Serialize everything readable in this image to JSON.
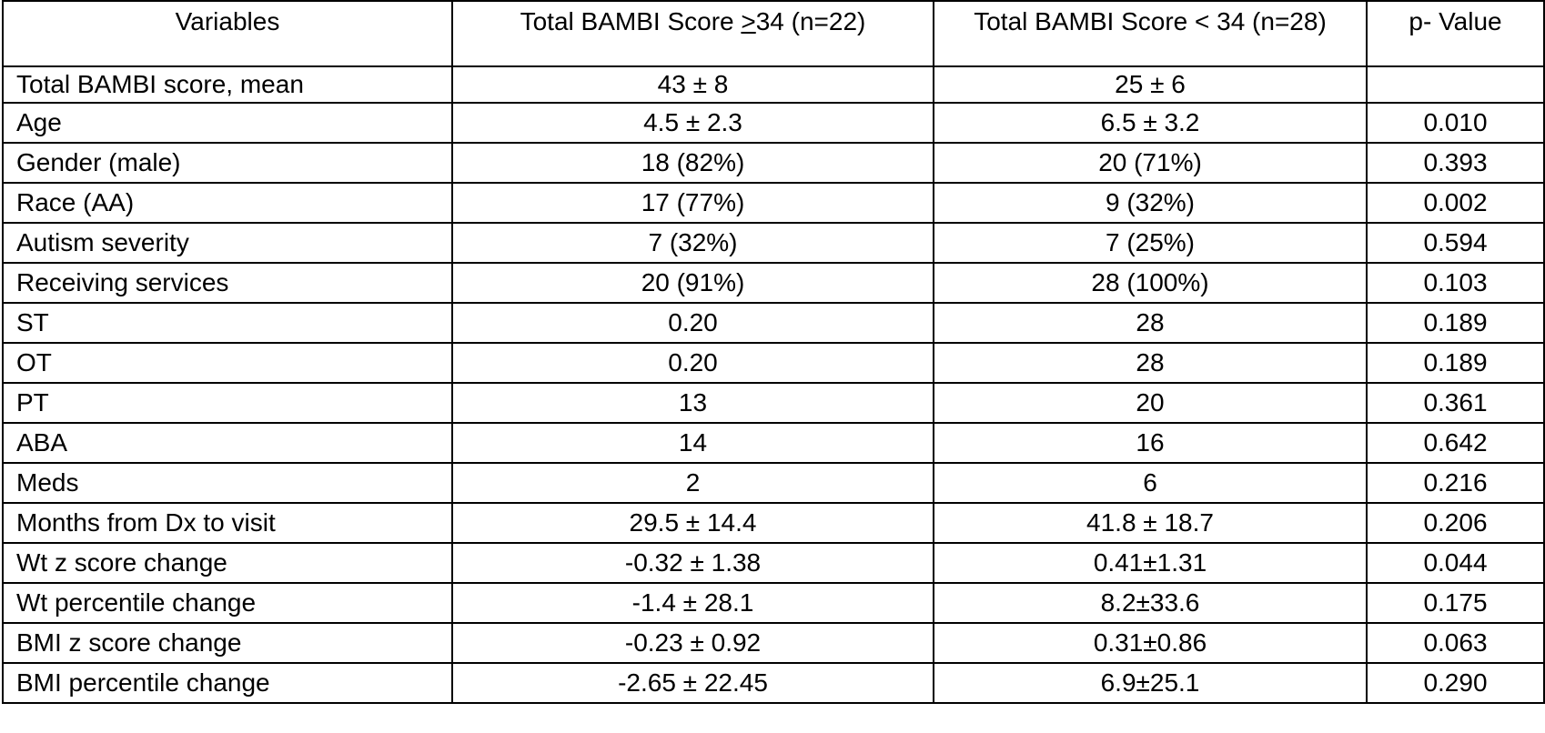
{
  "table": {
    "headers": {
      "variables": "Variables",
      "group1_prefix": "Total BAMBI Score ",
      "group1_symbol": ">",
      "group1_suffix": "34 (n=22)",
      "group2": "Total BAMBI Score < 34 (n=28)",
      "p_value": "p- Value"
    },
    "rows": [
      {
        "variable": "Total BAMBI score, mean",
        "group1": "43 ± 8",
        "group2": "25 ± 6",
        "p_value": ""
      },
      {
        "variable": "Age",
        "group1": "4.5 ± 2.3",
        "group2": "6.5 ± 3.2",
        "p_value": "0.010"
      },
      {
        "variable": "Gender (male)",
        "group1": "18 (82%)",
        "group2": "20 (71%)",
        "p_value": "0.393"
      },
      {
        "variable": "Race (AA)",
        "group1": "17 (77%)",
        "group2": "9 (32%)",
        "p_value": "0.002"
      },
      {
        "variable": "Autism severity",
        "group1": "7 (32%)",
        "group2": "7 (25%)",
        "p_value": "0.594"
      },
      {
        "variable": "Receiving services",
        "group1": "20 (91%)",
        "group2": "28 (100%)",
        "p_value": "0.103"
      },
      {
        "variable": "ST",
        "group1": "0.20",
        "group2": "28",
        "p_value": "0.189"
      },
      {
        "variable": "OT",
        "group1": "0.20",
        "group2": "28",
        "p_value": "0.189"
      },
      {
        "variable": "PT",
        "group1": "13",
        "group2": "20",
        "p_value": "0.361"
      },
      {
        "variable": "ABA",
        "group1": "14",
        "group2": "16",
        "p_value": "0.642"
      },
      {
        "variable": "Meds",
        "group1": "2",
        "group2": "6",
        "p_value": "0.216"
      },
      {
        "variable": "Months from Dx to visit",
        "group1": "29.5 ± 14.4",
        "group2": "41.8 ± 18.7",
        "p_value": "0.206"
      },
      {
        "variable": "Wt z score change",
        "group1": "-0.32 ± 1.38",
        "group2": "0.41±1.31",
        "p_value": "0.044"
      },
      {
        "variable": "Wt percentile change",
        "group1": "-1.4 ± 28.1",
        "group2": "8.2±33.6",
        "p_value": "0.175"
      },
      {
        "variable": "BMI z score change",
        "group1": "-0.23 ± 0.92",
        "group2": "0.31±0.86",
        "p_value": "0.063"
      },
      {
        "variable": "BMI percentile change",
        "group1": "-2.65 ± 22.45",
        "group2": "6.9±25.1",
        "p_value": "0.290"
      }
    ]
  }
}
